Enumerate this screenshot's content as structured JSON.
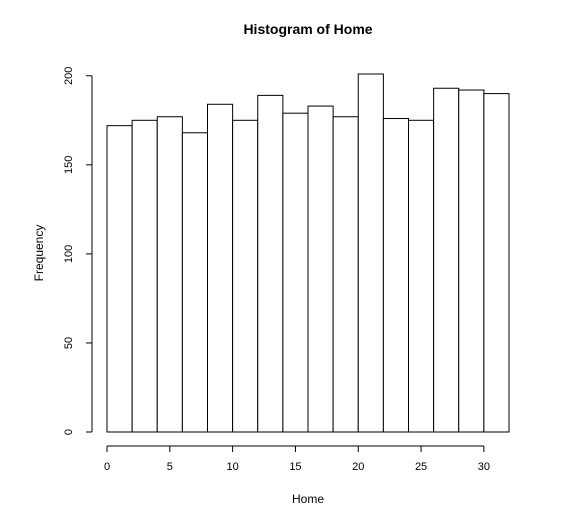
{
  "chart_data": {
    "type": "bar",
    "title": "Histogram of Home",
    "xlabel": "Home",
    "ylabel": "Frequency",
    "bin_edges": [
      0,
      2,
      4,
      6,
      8,
      10,
      12,
      14,
      16,
      18,
      20,
      22,
      24,
      26,
      28,
      30,
      32
    ],
    "values": [
      172,
      175,
      177,
      168,
      184,
      175,
      189,
      179,
      183,
      177,
      201,
      176,
      175,
      193,
      192,
      190
    ],
    "x_ticks": [
      0,
      5,
      10,
      15,
      20,
      25,
      30
    ],
    "y_ticks": [
      0,
      50,
      100,
      150,
      200
    ],
    "xlim": [
      0,
      32
    ],
    "ylim": [
      0,
      201
    ],
    "grid": false,
    "colors": {
      "bar_fill": "#ffffff",
      "bar_stroke": "#000000"
    }
  }
}
